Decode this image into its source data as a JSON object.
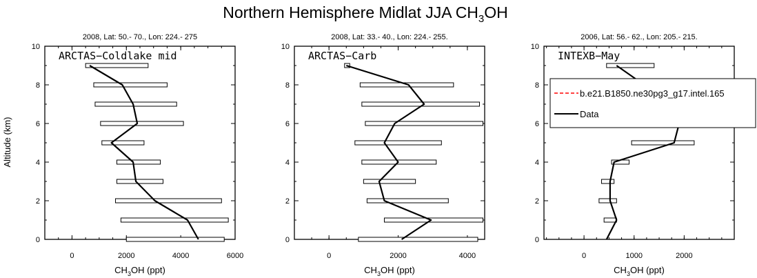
{
  "figure": {
    "title_main": "Northern Hemisphere Midlat JJA CH",
    "title_sub": "3",
    "title_tail": "OH",
    "ylabel": "Altitude (km)",
    "xlabel_main": "CH",
    "xlabel_sub": "3",
    "xlabel_tail": "OH (ppt)",
    "legend": {
      "model_label": "b.e21.B1850.ne30pg3_g17.intel.165",
      "data_label": "Data",
      "model_color": "#ff0000"
    }
  },
  "chart_data": [
    {
      "type": "line",
      "header": "2008, Lat:  50.- 70., Lon: 224.- 275",
      "label": "ARCTAS−Coldlake mid",
      "xlim": [
        -1000,
        6000
      ],
      "xticks": [
        0,
        2000,
        4000,
        6000
      ],
      "ylim": [
        0,
        10
      ],
      "yticks": [
        0,
        2,
        4,
        6,
        8,
        10
      ],
      "y": [
        0,
        1,
        2,
        3,
        4,
        5,
        6,
        7,
        8,
        9
      ],
      "x": [
        4650,
        4250,
        3050,
        2350,
        2250,
        1450,
        2400,
        2250,
        1850,
        650
      ],
      "bar_low": [
        2000,
        1800,
        1600,
        1650,
        1650,
        1100,
        1050,
        850,
        800,
        500
      ],
      "bar_high": [
        5600,
        5750,
        5500,
        3350,
        3250,
        2650,
        4100,
        3850,
        3500,
        2800
      ]
    },
    {
      "type": "line",
      "header": "2008, Lat:  33.- 40., Lon: 224.- 255.",
      "label": "ARCTAS−Carb",
      "xlim": [
        -1000,
        4500
      ],
      "xticks": [
        0,
        2000,
        4000
      ],
      "ylim": [
        0,
        10
      ],
      "yticks": [
        0,
        2,
        4,
        6,
        8,
        10
      ],
      "y": [
        0,
        1,
        2,
        3,
        4,
        5,
        6,
        7,
        8,
        9
      ],
      "x": [
        2100,
        2950,
        1600,
        1450,
        2000,
        1600,
        1900,
        2750,
        2300,
        500
      ],
      "bar_low": [
        850,
        1600,
        1100,
        1000,
        950,
        750,
        1050,
        950,
        900,
        450
      ],
      "bar_high": [
        4300,
        4450,
        3450,
        2500,
        3100,
        3250,
        4450,
        4350,
        3600,
        600
      ]
    },
    {
      "type": "line",
      "header": "2006, Lat: 56.- 62., Lon: 205.- 215.",
      "label": "INTEXB−May",
      "xlim": [
        -800,
        3000
      ],
      "xticks": [
        0,
        1000,
        2000
      ],
      "ylim": [
        0,
        10
      ],
      "yticks": [
        0,
        2,
        4,
        6,
        8,
        10
      ],
      "y": [
        0,
        1,
        2,
        3,
        4,
        5,
        6,
        7,
        8,
        9
      ],
      "x": [
        450,
        650,
        520,
        520,
        600,
        1800,
        1900,
        1400,
        1200,
        650
      ],
      "bar_low": [],
      "bar_high": [],
      "bar_y": [
        1,
        2,
        3,
        4,
        5,
        6,
        7,
        8,
        9
      ],
      "bar_low_y": [
        400,
        300,
        350,
        550,
        950,
        1400,
        1050,
        700,
        450
      ],
      "bar_high_y": [
        650,
        650,
        600,
        900,
        2200,
        2800,
        1600,
        1850,
        1400
      ]
    }
  ]
}
